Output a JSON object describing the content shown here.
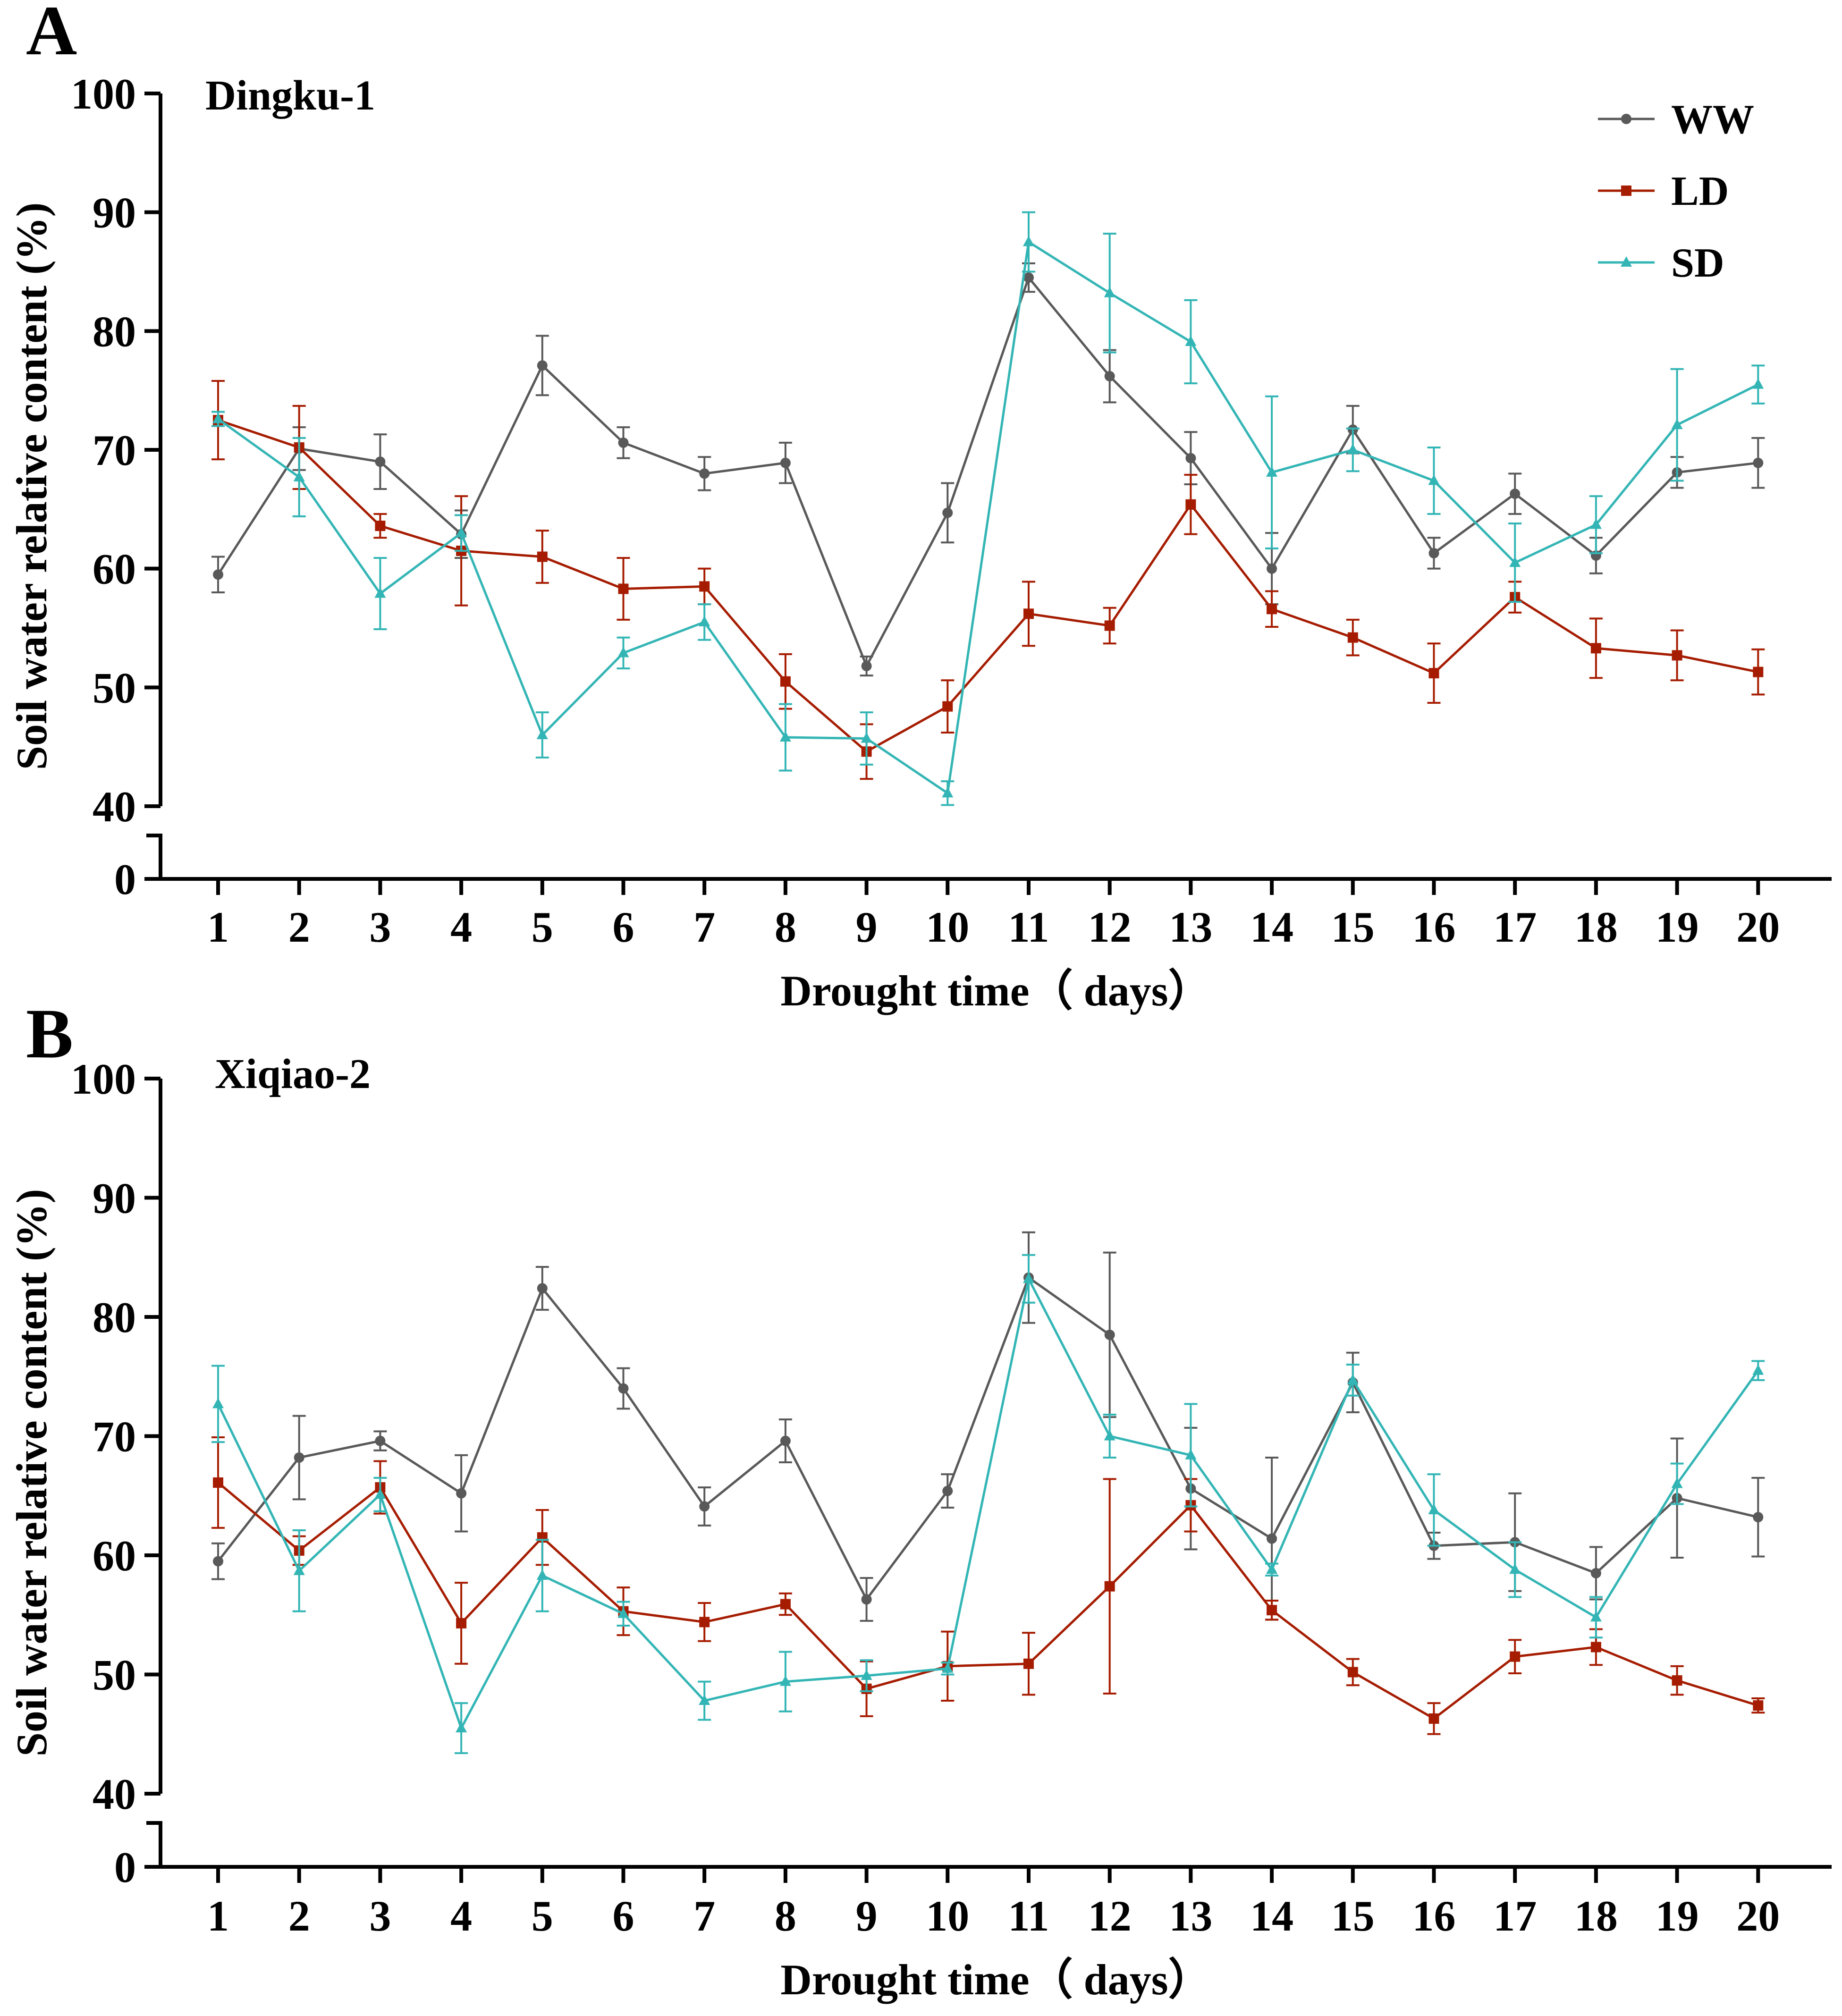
{
  "chart_data": [
    {
      "type": "line",
      "panel_label": "A",
      "title": "Dingku-1",
      "xlabel": "Drought time（ days）",
      "ylabel": "Soil water relative content (%)",
      "categories": [
        "1",
        "2",
        "3",
        "4",
        "5",
        "6",
        "7",
        "8",
        "9",
        "10",
        "11",
        "12",
        "13",
        "14",
        "15",
        "16",
        "17",
        "18",
        "19",
        "20"
      ],
      "y_ticks": [
        "0",
        "40",
        "50",
        "60",
        "70",
        "80",
        "90",
        "100"
      ],
      "ylim": [
        40,
        100
      ],
      "y_axis_break": "0 // 40",
      "legend_position": "top-right",
      "series": [
        {
          "name": "WW",
          "color": "#595959",
          "marker": "circle",
          "values": [
            59.5,
            70.1,
            69.0,
            62.9,
            77.1,
            70.6,
            68.0,
            68.9,
            51.8,
            64.7,
            84.5,
            76.2,
            69.3,
            60.0,
            71.7,
            61.3,
            66.3,
            61.1,
            68.1,
            68.9
          ],
          "errors": [
            1.5,
            1.8,
            2.3,
            2.0,
            2.5,
            1.3,
            1.4,
            1.7,
            0.8,
            2.5,
            1.2,
            2.2,
            2.2,
            3.0,
            2.0,
            1.3,
            1.7,
            1.5,
            1.3,
            2.1
          ]
        },
        {
          "name": "LD",
          "color": "#a61c00",
          "marker": "square",
          "values": [
            72.5,
            70.2,
            63.6,
            61.5,
            61.0,
            58.3,
            58.5,
            50.5,
            44.6,
            48.4,
            56.2,
            55.2,
            65.4,
            56.6,
            54.2,
            51.2,
            57.6,
            53.3,
            52.7,
            51.3
          ],
          "errors": [
            3.3,
            3.5,
            1.0,
            4.6,
            2.2,
            2.6,
            1.5,
            2.3,
            2.3,
            2.2,
            2.7,
            1.5,
            2.5,
            1.5,
            1.5,
            2.5,
            1.3,
            2.5,
            2.1,
            1.9
          ]
        },
        {
          "name": "SD",
          "color": "#33b5b5",
          "marker": "triangle",
          "values": [
            72.6,
            67.7,
            57.9,
            63.0,
            46.0,
            52.9,
            55.5,
            45.8,
            45.7,
            41.1,
            87.5,
            83.2,
            79.1,
            68.1,
            70.0,
            67.4,
            60.5,
            63.7,
            72.1,
            75.5
          ],
          "errors": [
            0.6,
            3.3,
            3.0,
            1.5,
            1.9,
            1.3,
            1.5,
            2.8,
            2.2,
            1.0,
            2.5,
            5.0,
            3.5,
            6.4,
            1.8,
            2.8,
            3.3,
            2.4,
            4.7,
            1.6
          ]
        }
      ]
    },
    {
      "type": "line",
      "panel_label": "B",
      "title": "Xiqiao-2",
      "xlabel": "Drought time（ days）",
      "ylabel": "Soil water relative content (%)",
      "categories": [
        "1",
        "2",
        "3",
        "4",
        "5",
        "6",
        "7",
        "8",
        "9",
        "10",
        "11",
        "12",
        "13",
        "14",
        "15",
        "16",
        "17",
        "18",
        "19",
        "20"
      ],
      "y_ticks": [
        "0",
        "40",
        "50",
        "60",
        "70",
        "80",
        "90",
        "100"
      ],
      "ylim": [
        40,
        100
      ],
      "y_axis_break": "0 // 40",
      "series": [
        {
          "name": "WW",
          "color": "#595959",
          "marker": "circle",
          "values": [
            59.5,
            68.2,
            69.6,
            65.2,
            82.4,
            74.0,
            64.1,
            69.6,
            56.3,
            65.4,
            83.3,
            78.5,
            65.6,
            61.4,
            74.5,
            60.8,
            61.1,
            58.5,
            64.8,
            63.2
          ],
          "errors": [
            1.5,
            3.5,
            0.8,
            3.2,
            1.8,
            1.7,
            1.6,
            1.8,
            1.8,
            1.4,
            3.8,
            6.9,
            5.1,
            6.8,
            2.5,
            1.1,
            4.1,
            2.2,
            5.0,
            3.3
          ]
        },
        {
          "name": "LD",
          "color": "#a61c00",
          "marker": "square",
          "values": [
            66.1,
            60.4,
            65.7,
            54.3,
            61.5,
            55.3,
            54.4,
            55.9,
            48.8,
            50.7,
            50.9,
            57.4,
            64.2,
            55.4,
            50.2,
            46.3,
            51.5,
            52.3,
            49.5,
            47.4
          ],
          "errors": [
            3.8,
            1.2,
            2.2,
            3.4,
            2.3,
            2.0,
            1.6,
            0.9,
            2.3,
            2.9,
            2.6,
            9.0,
            2.2,
            0.8,
            1.1,
            1.3,
            1.4,
            1.5,
            1.2,
            0.6
          ]
        },
        {
          "name": "SD",
          "color": "#33b5b5",
          "marker": "triangle",
          "values": [
            72.7,
            58.7,
            65.1,
            45.5,
            58.3,
            55.1,
            47.8,
            49.4,
            49.9,
            50.5,
            83.2,
            70.0,
            68.4,
            58.8,
            74.7,
            63.8,
            58.8,
            54.8,
            66.0,
            75.5
          ],
          "errors": [
            3.2,
            3.4,
            1.4,
            2.1,
            3.0,
            1.0,
            1.6,
            2.5,
            1.3,
            0.5,
            2.0,
            1.8,
            4.3,
            0.5,
            1.3,
            3.0,
            2.3,
            1.7,
            1.7,
            0.8
          ]
        }
      ]
    }
  ]
}
